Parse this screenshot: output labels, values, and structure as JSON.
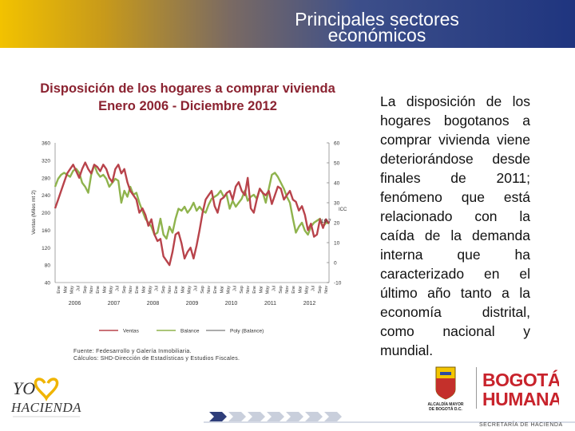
{
  "header": {
    "title": "Principales sectores económicos"
  },
  "chart_data": {
    "type": "line",
    "title": "Disposición de los hogares a comprar vivienda\nEnero 2006 - Diciembre 2012",
    "ylabel_left": "Ventas (Miles mt 2)",
    "ylabel_right": "ICC",
    "y_left": {
      "min": 40,
      "max": 360,
      "ticks": [
        "360",
        "320",
        "280",
        "240",
        "200",
        "160",
        "120",
        "80",
        "40"
      ]
    },
    "y_right": {
      "min": -10,
      "max": 60,
      "ticks": [
        "60",
        "50",
        "40",
        "30",
        "20",
        "10",
        "0",
        "-10"
      ]
    },
    "month_labels": [
      "Ene",
      "Mar",
      "May",
      "Jul",
      "Sep",
      "Nov"
    ],
    "years": [
      "2006",
      "2007",
      "2008",
      "2009",
      "2010",
      "2011",
      "2012"
    ],
    "annotation": "19,7",
    "legend": [
      "Ventas",
      "Balance",
      "Poly (Balance)"
    ],
    "colors": {
      "ventas": "#b8434b",
      "balance": "#8fb34d",
      "poly": "#222222"
    },
    "series": [
      {
        "name": "Ventas",
        "axis": "left",
        "values": [
          210,
          230,
          250,
          270,
          290,
          300,
          310,
          295,
          280,
          300,
          315,
          300,
          290,
          310,
          305,
          295,
          310,
          300,
          280,
          270,
          300,
          310,
          290,
          300,
          270,
          250,
          240,
          230,
          200,
          210,
          195,
          170,
          185,
          150,
          135,
          140,
          100,
          90,
          80,
          110,
          150,
          155,
          130,
          95,
          110,
          120,
          95,
          125,
          160,
          200,
          230,
          240,
          250,
          215,
          200,
          230,
          235,
          245,
          250,
          230,
          260,
          270,
          250,
          240,
          280,
          210,
          200,
          230,
          255,
          245,
          240,
          250,
          220,
          240,
          260,
          255,
          230,
          240,
          250,
          230,
          225,
          205,
          215,
          195,
          160,
          175,
          145,
          150,
          185,
          165,
          185,
          175
        ]
      },
      {
        "name": "Balance",
        "axis": "right",
        "values": [
          38,
          42,
          44,
          45,
          44,
          43,
          46,
          47,
          45,
          40,
          38,
          35,
          44,
          49,
          45,
          43,
          44,
          42,
          38,
          40,
          42,
          41,
          30,
          36,
          33,
          38,
          34,
          35,
          30,
          26,
          22,
          20,
          18,
          14,
          15,
          22,
          14,
          12,
          18,
          15,
          22,
          27,
          26,
          28,
          25,
          27,
          30,
          26,
          28,
          26,
          25,
          29,
          32,
          33,
          34,
          36,
          33,
          34,
          27,
          31,
          28,
          30,
          32,
          36,
          31,
          33,
          34,
          32,
          37,
          35,
          30,
          37,
          44,
          45,
          43,
          40,
          37,
          33,
          30,
          22,
          15,
          18,
          20,
          16,
          14,
          18,
          20,
          21,
          22,
          18,
          20,
          19.7
        ]
      },
      {
        "name": "Poly (Balance)",
        "axis": "right",
        "values": []
      }
    ]
  },
  "source": {
    "line1": "Fuente: Fedesarrollo y Galería Inmobiliaria.",
    "line2": "Cálculos: SHD-Dirección de Estadísticas y Estudios Fiscales."
  },
  "side_text": "La disposición de los hogares bogotanos a comprar vivienda viene deteriorándose desde finales de 2011; fenómeno que está relacionado con la caída de la demanda interna que ha caracterizado en el último año tanto a la economía distrital, como nacional y mundial.",
  "logos": {
    "yo_hacienda": "YO HACIENDA",
    "alcaldia": "ALCALDÍA MAYOR DE BOGOTÁ D.C.",
    "bogota_line1": "BOGOTÁ",
    "bogota_line2": "HUMANA",
    "secretaria": "SECRETARÍA DE HACIENDA"
  }
}
